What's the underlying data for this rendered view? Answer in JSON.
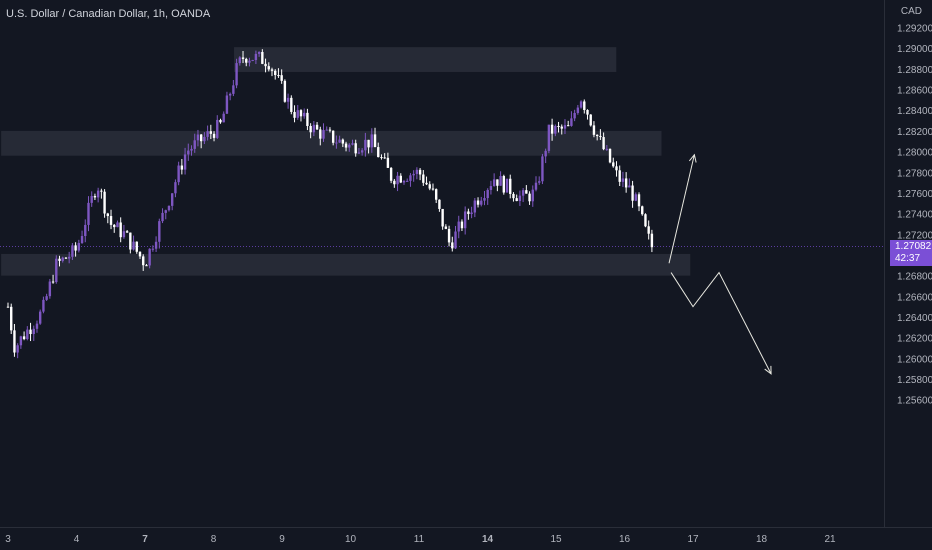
{
  "header": {
    "title": "U.S. Dollar / Canadian Dollar, 1h, OANDA",
    "currency": "CAD"
  },
  "last_price": {
    "value": "1.27082",
    "countdown": "42:37",
    "numeric": 1.27082
  },
  "colors": {
    "background": "#131722",
    "bull_candle": "#7e57c2",
    "bear_candle": "#ffffff",
    "zone": "#2a2e39",
    "projection": "#e8e8e0",
    "price_tag": "#7b4fd6",
    "axis_text": "#b2b5be"
  },
  "chart_data": {
    "type": "candlestick",
    "title": "U.S. Dollar / Canadian Dollar, 1h, OANDA",
    "y_axis": {
      "ticks": [
        "1.29200",
        "1.29000",
        "1.28800",
        "1.28600",
        "1.28400",
        "1.28200",
        "1.28000",
        "1.27800",
        "1.27600",
        "1.27400",
        "1.27200",
        "1.26800",
        "1.26600",
        "1.26400",
        "1.26200",
        "1.26000",
        "1.25800",
        "1.25600"
      ],
      "tick_values": [
        1.292,
        1.29,
        1.288,
        1.286,
        1.284,
        1.282,
        1.28,
        1.278,
        1.276,
        1.274,
        1.272,
        1.268,
        1.266,
        1.264,
        1.262,
        1.26,
        1.258,
        1.256
      ],
      "range": [
        1.2555,
        1.2932
      ]
    },
    "x_axis": {
      "ticks": [
        {
          "label": "3",
          "x": 0.0,
          "bold": false
        },
        {
          "label": "4",
          "x": 1.0,
          "bold": false
        },
        {
          "label": "7",
          "x": 2.0,
          "bold": true
        },
        {
          "label": "8",
          "x": 3.0,
          "bold": false
        },
        {
          "label": "9",
          "x": 4.0,
          "bold": false
        },
        {
          "label": "10",
          "x": 5.0,
          "bold": false
        },
        {
          "label": "11",
          "x": 6.0,
          "bold": false
        },
        {
          "label": "14",
          "x": 7.0,
          "bold": true
        },
        {
          "label": "15",
          "x": 8.0,
          "bold": false
        },
        {
          "label": "16",
          "x": 9.0,
          "bold": false
        },
        {
          "label": "17",
          "x": 10.0,
          "bold": false
        },
        {
          "label": "18",
          "x": 11.0,
          "bold": false
        },
        {
          "label": "21",
          "x": 12.0,
          "bold": false
        }
      ],
      "range": [
        -0.1,
        12.88
      ]
    },
    "zones": [
      {
        "x_start": 3.3,
        "x_end": 8.88,
        "y_low": 1.2877,
        "y_high": 1.2901
      },
      {
        "x_start": -0.1,
        "x_end": 9.54,
        "y_low": 1.2796,
        "y_high": 1.282
      },
      {
        "x_start": -0.1,
        "x_end": 9.96,
        "y_low": 1.268,
        "y_high": 1.2701
      }
    ],
    "projections": [
      {
        "points": [
          [
            9.65,
            1.2692
          ],
          [
            10.02,
            1.2797
          ]
        ],
        "arrow": true
      },
      {
        "points": [
          [
            9.68,
            1.2683
          ],
          [
            10.0,
            1.265
          ],
          [
            10.38,
            1.2683
          ],
          [
            11.14,
            1.2585
          ]
        ],
        "arrow": true
      }
    ],
    "anchors": [
      [
        0.0,
        1.265
      ],
      [
        0.1,
        1.261
      ],
      [
        0.2,
        1.262
      ],
      [
        0.5,
        1.2645
      ],
      [
        0.7,
        1.269
      ],
      [
        1.0,
        1.2705
      ],
      [
        1.3,
        1.277
      ],
      [
        1.5,
        1.273
      ],
      [
        1.7,
        1.272
      ],
      [
        2.0,
        1.2692
      ],
      [
        2.3,
        1.2745
      ],
      [
        2.6,
        1.28
      ],
      [
        2.9,
        1.2815
      ],
      [
        3.1,
        1.2825
      ],
      [
        3.35,
        1.2882
      ],
      [
        3.45,
        1.2893
      ],
      [
        3.8,
        1.2888
      ],
      [
        4.15,
        1.284
      ],
      [
        4.5,
        1.282
      ],
      [
        5.0,
        1.2805
      ],
      [
        5.3,
        1.281
      ],
      [
        5.6,
        1.2775
      ],
      [
        6.0,
        1.278
      ],
      [
        6.2,
        1.276
      ],
      [
        6.45,
        1.271
      ],
      [
        6.8,
        1.275
      ],
      [
        7.1,
        1.2775
      ],
      [
        7.5,
        1.2755
      ],
      [
        7.7,
        1.276
      ],
      [
        7.9,
        1.282
      ],
      [
        8.2,
        1.2822
      ],
      [
        8.35,
        1.2855
      ],
      [
        8.45,
        1.284
      ],
      [
        8.6,
        1.2815
      ],
      [
        8.9,
        1.2775
      ],
      [
        9.1,
        1.2762
      ],
      [
        9.2,
        1.2745
      ],
      [
        9.32,
        1.272
      ],
      [
        9.4,
        1.2708
      ]
    ]
  }
}
